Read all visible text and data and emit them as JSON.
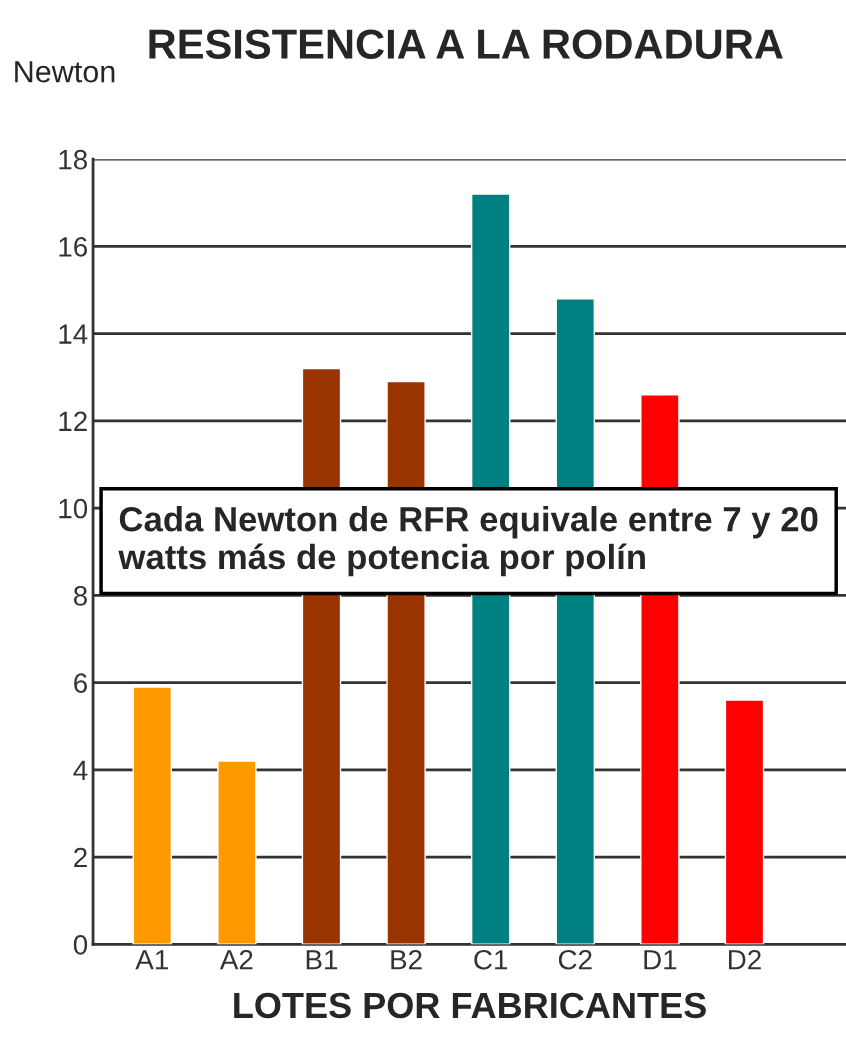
{
  "chart_data": {
    "type": "bar",
    "title": "RESISTENCIA A LA RODADURA",
    "ylabel": "Newton",
    "xlabel": "LOTES POR FABRICANTES",
    "categories": [
      "A1",
      "A2",
      "B1",
      "B2",
      "C1",
      "C2",
      "D1",
      "D2"
    ],
    "values": [
      5.9,
      4.2,
      13.2,
      12.9,
      17.2,
      14.8,
      12.6,
      5.6
    ],
    "colors": [
      "#ff9900",
      "#ff9900",
      "#993300",
      "#993300",
      "#008080",
      "#008080",
      "#ff0000",
      "#ff0000"
    ],
    "ylim": [
      0,
      18
    ],
    "yticks": [
      0,
      2,
      4,
      6,
      8,
      10,
      12,
      14,
      16,
      18
    ],
    "grid": "y",
    "annotations": [
      "Cada Newton de RFR equivale entre 7 y 20 watts más de potencia por polín"
    ]
  }
}
